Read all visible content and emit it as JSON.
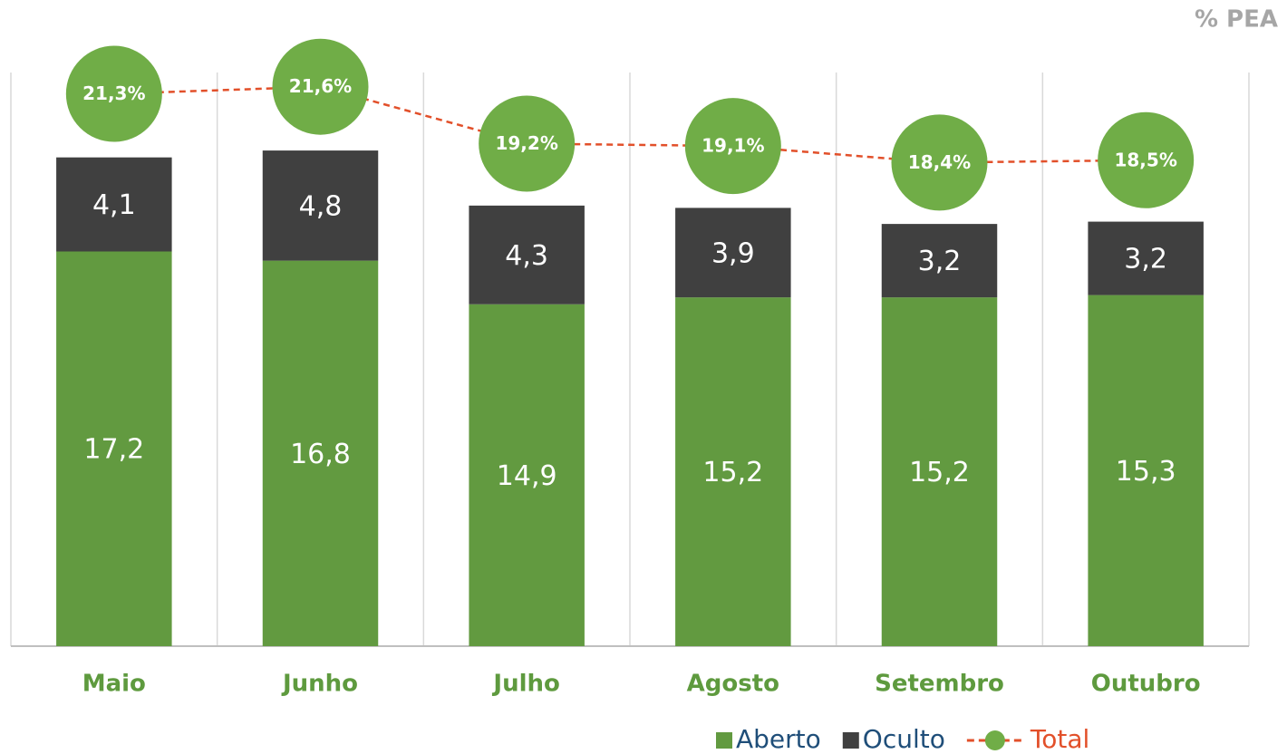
{
  "chart_data": {
    "type": "stacked_bar_line",
    "axis_label": "% PEA",
    "categories": [
      "Maio",
      "Junho",
      "Julho",
      "Agosto",
      "Setembro",
      "Outubro"
    ],
    "series": [
      {
        "name": "Aberto",
        "color": "#629a40",
        "values": [
          17.2,
          16.8,
          14.9,
          15.2,
          15.2,
          15.3
        ],
        "value_labels": [
          "17,2",
          "16,8",
          "14,9",
          "15,2",
          "15,2",
          "15,3"
        ]
      },
      {
        "name": "Oculto",
        "color": "#404040",
        "values": [
          4.1,
          4.8,
          4.3,
          3.9,
          3.2,
          3.2
        ],
        "value_labels": [
          "4,1",
          "4,8",
          "4,3",
          "3,9",
          "3,2",
          "3,2"
        ]
      },
      {
        "name": "Total",
        "type": "line",
        "axis": "y2",
        "color": "#e2502a",
        "marker_color": "#70ad47",
        "values": [
          21.3,
          21.6,
          19.2,
          19.1,
          18.4,
          18.5
        ],
        "value_labels": [
          "21,3%",
          "21,6%",
          "19,2%",
          "19,1%",
          "18,4%",
          "18,5%"
        ]
      }
    ],
    "ylim": [
      0,
      25
    ],
    "y2lim": [
      -2,
      22.2
    ],
    "legend": "bottom-right"
  }
}
